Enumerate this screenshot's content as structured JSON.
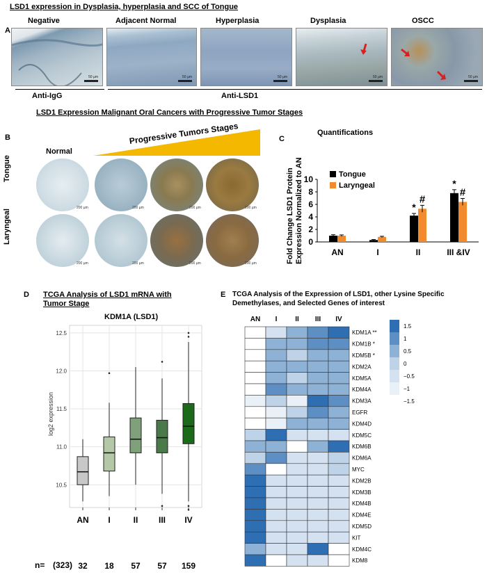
{
  "panelA": {
    "title": "LSD1 expression in  Dysplasia, hyperplasia and SCC of Tongue",
    "letter": "A",
    "images": [
      {
        "label": "Negative",
        "scale": "50 µm"
      },
      {
        "label": "Adjacent Normal",
        "scale": "50 µm"
      },
      {
        "label": "Hyperplasia",
        "scale": "50 µm"
      },
      {
        "label": "Dysplasia",
        "scale": "50 µm"
      },
      {
        "label": "OSCC",
        "scale": "50 µm"
      }
    ],
    "anti_igg": "Anti-IgG",
    "anti_lsd1": "Anti-LSD1"
  },
  "panelB": {
    "title": "LSD1 Expression Malignant Oral Cancers with Progressive Tumor Stages",
    "letter": "B",
    "normal": "Normal",
    "progressive": "Progressive  Tumors Stages",
    "row1": "Tongue",
    "row2": "Laryngeal",
    "scale": "200 µm"
  },
  "panelC": {
    "letter": "C",
    "title": "Quantifications",
    "colors": {
      "tongue": "#000000",
      "laryngeal": "#f28a2e"
    },
    "chart_data": {
      "type": "bar",
      "title": "Quantifications",
      "ylabel_line1": "Fold Change LSD1 Protein",
      "ylabel_line2": "Expression Normalized to AN",
      "ylim": [
        0,
        10
      ],
      "yticks": [
        "0",
        "2",
        "4",
        "6",
        "8",
        "10"
      ],
      "categories": [
        "AN",
        "I",
        "II",
        "III &IV"
      ],
      "series": [
        {
          "name": "Tongue",
          "values": [
            1.0,
            0.3,
            4.2,
            7.8
          ],
          "errors": [
            0.15,
            0.08,
            0.35,
            0.55
          ]
        },
        {
          "name": "Laryngeal",
          "values": [
            1.0,
            0.8,
            5.3,
            6.4
          ],
          "errors": [
            0.12,
            0.1,
            0.55,
            0.55
          ]
        }
      ],
      "annotations": [
        {
          "category": "II",
          "series": "Tongue",
          "text": "*"
        },
        {
          "category": "II",
          "series": "Laryngeal",
          "text": "#"
        },
        {
          "category": "III &IV",
          "series": "Tongue",
          "text": "*"
        },
        {
          "category": "III &IV",
          "series": "Laryngeal",
          "text": "#"
        }
      ]
    }
  },
  "panelD": {
    "letter": "D",
    "title_line1": "TCGA Analysis of LSD1 mRNA with",
    "title_line2": "Tumor Stage",
    "subtitle": "KDM1A (LSD1)",
    "n_prefix": "n=",
    "n_total": "(323)",
    "colors": {
      "AN": "#c8c8c8",
      "I": "#b4c8a8",
      "II": "#7fa07a",
      "III": "#4a7a4a",
      "IV": "#1a6a1a"
    },
    "chart_data": {
      "type": "box",
      "ylabel": "log2 expression",
      "ylim": [
        10.2,
        12.6
      ],
      "yticks": [
        "10.5",
        "11.0",
        "11.5",
        "12.0",
        "12.5"
      ],
      "categories": [
        "AN",
        "I",
        "II",
        "III",
        "IV"
      ],
      "n": [
        "32",
        "18",
        "57",
        "57",
        "159"
      ],
      "boxes": [
        {
          "name": "AN",
          "whisker_low": 10.28,
          "q1": 10.5,
          "median": 10.67,
          "q3": 10.87,
          "whisker_high": 11.1,
          "outliers": []
        },
        {
          "name": "I",
          "whisker_low": 10.35,
          "q1": 10.68,
          "median": 10.92,
          "q3": 11.13,
          "whisker_high": 11.58,
          "outliers": [
            11.97
          ]
        },
        {
          "name": "II",
          "whisker_low": 10.5,
          "q1": 10.92,
          "median": 11.1,
          "q3": 11.38,
          "whisker_high": 12.05,
          "outliers": []
        },
        {
          "name": "III",
          "whisker_low": 10.38,
          "q1": 10.92,
          "median": 11.12,
          "q3": 11.35,
          "whisker_high": 11.9,
          "outliers": [
            12.12,
            10.22
          ]
        },
        {
          "name": "IV",
          "whisker_low": 10.28,
          "q1": 11.04,
          "median": 11.27,
          "q3": 11.57,
          "whisker_high": 12.38,
          "outliers": [
            12.45,
            12.5,
            10.22,
            10.17
          ]
        }
      ]
    }
  },
  "panelE": {
    "letter": "E",
    "title_line1": "TCGA Analysis of the Expression of LSD1, other Lysine Specific",
    "title_line2": "Demethylases, and Selected Genes of interest",
    "chart_data": {
      "type": "heatmap",
      "columns": [
        "AN",
        "I",
        "II",
        "III",
        "IV"
      ],
      "rows": [
        "KDM1A **",
        "KDM1B *",
        "KDM5B *",
        "KDM2A",
        "KDM5A",
        "KDM4A",
        "KDM3A",
        "EGFR",
        "KDM4D",
        "KDM5C",
        "KDM6B",
        "KDM6A",
        "MYC",
        "KDM2B",
        "KDM3B",
        "KDM4B",
        "KDM4E",
        "KDM5D",
        "KIT",
        "KDM4C",
        "KDM8"
      ],
      "values": [
        [
          -1.5,
          -0.5,
          0.5,
          1.0,
          1.5
        ],
        [
          -1.5,
          0.5,
          0.5,
          1.0,
          1.0
        ],
        [
          -1.5,
          0.5,
          0.0,
          0.5,
          0.5
        ],
        [
          -1.5,
          0.5,
          0.5,
          0.5,
          0.5
        ],
        [
          -1.5,
          0.5,
          0.0,
          0.5,
          0.5
        ],
        [
          -1.5,
          1.0,
          0.5,
          0.5,
          0.5
        ],
        [
          -1.0,
          0.0,
          -1.0,
          1.5,
          1.0
        ],
        [
          -1.5,
          -1.0,
          0.0,
          1.0,
          0.5
        ],
        [
          -1.5,
          -1.0,
          0.5,
          0.5,
          0.5
        ],
        [
          0.0,
          1.5,
          -0.5,
          -0.5,
          -0.5
        ],
        [
          0.5,
          0.5,
          -1.5,
          0.5,
          1.5
        ],
        [
          0.0,
          1.0,
          -0.5,
          -0.5,
          0.0
        ],
        [
          1.0,
          -1.5,
          -0.5,
          -0.5,
          0.0
        ],
        [
          1.5,
          -0.5,
          -0.5,
          -0.5,
          -0.5
        ],
        [
          1.5,
          -0.5,
          -0.5,
          -0.5,
          -0.5
        ],
        [
          1.5,
          -0.5,
          -0.5,
          -0.5,
          -0.5
        ],
        [
          1.5,
          -0.5,
          -0.5,
          -0.5,
          -0.5
        ],
        [
          1.5,
          -0.5,
          -0.5,
          -0.5,
          -0.5
        ],
        [
          1.5,
          -0.5,
          -0.5,
          -0.5,
          -0.5
        ],
        [
          0.5,
          -0.5,
          -0.5,
          1.5,
          -1.5
        ],
        [
          1.5,
          -1.5,
          -0.5,
          -0.5,
          -1.5
        ]
      ],
      "legend_ticks": [
        "1.5",
        "1",
        "0.5",
        "0",
        "−0.5",
        "−1",
        "−1.5"
      ],
      "legend_values": [
        1.5,
        1.0,
        0.5,
        0.0,
        -0.5,
        -1.0,
        -1.5
      ]
    }
  }
}
